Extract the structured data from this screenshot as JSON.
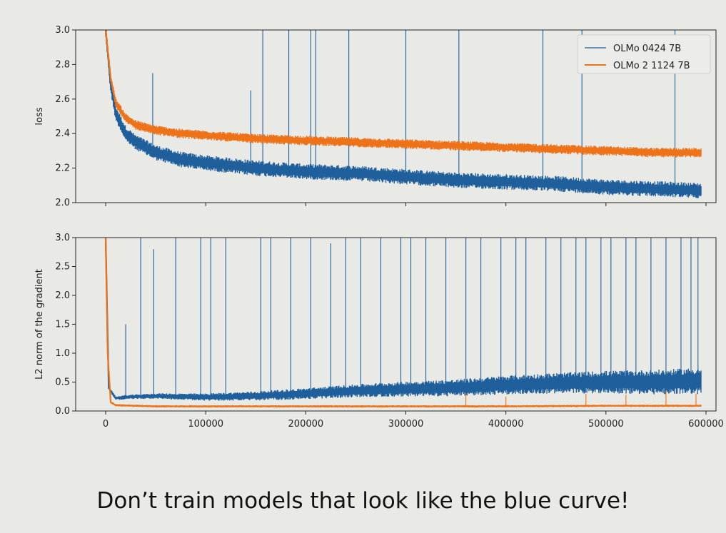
{
  "caption": "Don’t train models that look like the blue curve!",
  "colors": {
    "series_blue": "#1f5f9c",
    "series_orange": "#ee7218",
    "axes": "#222222",
    "background": "#e9eae6"
  },
  "chart_data": [
    {
      "type": "line",
      "title": "",
      "xlabel": "",
      "ylabel": "loss",
      "xlim": [
        -30000,
        610000
      ],
      "ylim": [
        2.0,
        3.0
      ],
      "x_ticks": [
        0,
        100000,
        200000,
        300000,
        400000,
        500000,
        600000
      ],
      "y_ticks": [
        2.0,
        2.2,
        2.4,
        2.6,
        2.8,
        3.0
      ],
      "x_tick_labels_shown": false,
      "legend": "top-right",
      "series": [
        {
          "name": "OLMo 0424 7B",
          "color": "#1f5f9c",
          "x": [
            0,
            5000,
            10000,
            20000,
            30000,
            50000,
            75000,
            100000,
            150000,
            200000,
            250000,
            300000,
            350000,
            400000,
            450000,
            500000,
            550000,
            595000
          ],
          "y": [
            3.0,
            2.68,
            2.52,
            2.4,
            2.35,
            2.29,
            2.25,
            2.23,
            2.2,
            2.18,
            2.17,
            2.15,
            2.13,
            2.12,
            2.11,
            2.09,
            2.08,
            2.07
          ],
          "spikes": [
            [
              47000,
              2.75
            ],
            [
              145000,
              2.65
            ],
            [
              157000,
              3.0
            ],
            [
              183000,
              3.0
            ],
            [
              205000,
              3.0
            ],
            [
              210000,
              3.0
            ],
            [
              243000,
              3.0
            ],
            [
              300000,
              3.0
            ],
            [
              353000,
              3.0
            ],
            [
              437000,
              3.0
            ],
            [
              476000,
              3.0
            ],
            [
              569000,
              3.0
            ]
          ]
        },
        {
          "name": "OLMo 2 1124 7B",
          "color": "#ee7218",
          "x": [
            0,
            5000,
            10000,
            20000,
            30000,
            50000,
            75000,
            100000,
            150000,
            200000,
            250000,
            300000,
            350000,
            400000,
            450000,
            500000,
            550000,
            595000
          ],
          "y": [
            3.0,
            2.72,
            2.58,
            2.49,
            2.45,
            2.42,
            2.4,
            2.39,
            2.37,
            2.36,
            2.35,
            2.34,
            2.33,
            2.32,
            2.31,
            2.3,
            2.29,
            2.29
          ]
        }
      ]
    },
    {
      "type": "line",
      "title": "",
      "xlabel": "",
      "ylabel": "L2 norm of the gradient",
      "xlim": [
        -30000,
        610000
      ],
      "ylim": [
        0.0,
        3.0
      ],
      "x_ticks": [
        0,
        100000,
        200000,
        300000,
        400000,
        500000,
        600000
      ],
      "x_tick_labels": [
        "0",
        "100000",
        "200000",
        "300000",
        "400000",
        "500000",
        "600000"
      ],
      "y_ticks": [
        0.0,
        0.5,
        1.0,
        1.5,
        2.0,
        2.5,
        3.0
      ],
      "legend": "none",
      "series": [
        {
          "name": "OLMo 0424 7B",
          "color": "#1f5f9c",
          "x": [
            0,
            3000,
            10000,
            20000,
            50000,
            100000,
            150000,
            200000,
            250000,
            300000,
            350000,
            400000,
            450000,
            500000,
            550000,
            595000
          ],
          "y": [
            3.0,
            0.4,
            0.22,
            0.24,
            0.26,
            0.24,
            0.26,
            0.3,
            0.35,
            0.38,
            0.4,
            0.45,
            0.48,
            0.5,
            0.5,
            0.52
          ],
          "spikes": [
            [
              20000,
              1.5
            ],
            [
              35000,
              3.0
            ],
            [
              48000,
              2.8
            ],
            [
              70000,
              3.0
            ],
            [
              95000,
              3.0
            ],
            [
              105000,
              3.0
            ],
            [
              120000,
              3.0
            ],
            [
              155000,
              3.0
            ],
            [
              165000,
              3.0
            ],
            [
              185000,
              3.0
            ],
            [
              205000,
              3.0
            ],
            [
              225000,
              2.9
            ],
            [
              240000,
              3.0
            ],
            [
              255000,
              3.0
            ],
            [
              275000,
              3.0
            ],
            [
              295000,
              3.0
            ],
            [
              305000,
              3.0
            ],
            [
              320000,
              3.0
            ],
            [
              340000,
              3.0
            ],
            [
              360000,
              3.0
            ],
            [
              375000,
              3.0
            ],
            [
              395000,
              3.0
            ],
            [
              410000,
              3.0
            ],
            [
              420000,
              3.0
            ],
            [
              440000,
              3.0
            ],
            [
              455000,
              3.0
            ],
            [
              470000,
              3.0
            ],
            [
              480000,
              3.0
            ],
            [
              495000,
              3.0
            ],
            [
              505000,
              3.0
            ],
            [
              520000,
              3.0
            ],
            [
              530000,
              3.0
            ],
            [
              545000,
              3.0
            ],
            [
              560000,
              3.0
            ],
            [
              575000,
              3.0
            ],
            [
              585000,
              3.0
            ],
            [
              592000,
              3.0
            ]
          ]
        },
        {
          "name": "OLMo 2 1124 7B",
          "color": "#ee7218",
          "x": [
            0,
            2000,
            5000,
            10000,
            50000,
            100000,
            200000,
            300000,
            400000,
            500000,
            595000
          ],
          "y": [
            3.0,
            1.0,
            0.15,
            0.1,
            0.08,
            0.08,
            0.08,
            0.08,
            0.08,
            0.09,
            0.09
          ],
          "spikes": [
            [
              360000,
              0.3
            ],
            [
              400000,
              0.25
            ],
            [
              480000,
              0.3
            ],
            [
              520000,
              0.28
            ],
            [
              560000,
              0.35
            ],
            [
              590000,
              0.3
            ]
          ]
        }
      ]
    }
  ]
}
